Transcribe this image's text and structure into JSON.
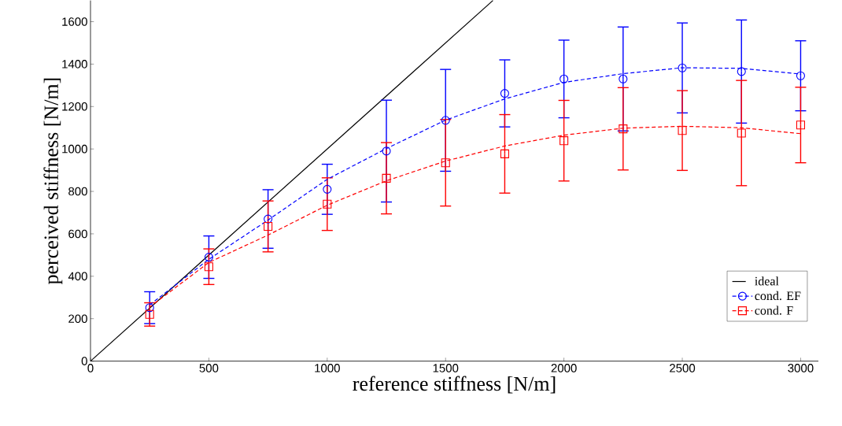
{
  "chart_data": {
    "type": "scatter",
    "xlabel": "reference stiffness [N/m]",
    "ylabel": "perceived stiffness [N/m]",
    "xlim": [
      0,
      3075
    ],
    "ylim": [
      0,
      1700
    ],
    "xticks": [
      0,
      500,
      1000,
      1500,
      2000,
      2500,
      3000
    ],
    "yticks": [
      0,
      200,
      400,
      600,
      800,
      1000,
      1200,
      1400,
      1600
    ],
    "legend": "bottom right",
    "series": [
      {
        "name": "ideal",
        "type": "line",
        "color": "#000000",
        "line_style": "solid",
        "marker": "none",
        "x": [
          0,
          1700
        ],
        "values": [
          0,
          1700
        ]
      },
      {
        "name": "cond. EF",
        "color": "#0000ff",
        "marker": "circle",
        "line_style": "dashed",
        "x": [
          250,
          500,
          750,
          1000,
          1250,
          1500,
          1750,
          2000,
          2250,
          2500,
          2750,
          3000
        ],
        "values": [
          252,
          490,
          670,
          810,
          990,
          1135,
          1262,
          1330,
          1330,
          1382,
          1365,
          1345
        ],
        "errors": [
          75,
          100,
          138,
          118,
          240,
          240,
          158,
          183,
          245,
          212,
          243,
          165
        ]
      },
      {
        "name": "cond. F",
        "color": "#ff0000",
        "marker": "square",
        "line_style": "dashed",
        "x": [
          250,
          500,
          750,
          1000,
          1250,
          1500,
          1750,
          2000,
          2250,
          2500,
          2750,
          3000
        ],
        "values": [
          220,
          445,
          635,
          740,
          862,
          935,
          977,
          1039,
          1095,
          1087,
          1075,
          1113
        ],
        "errors": [
          55,
          84,
          120,
          124,
          168,
          204,
          185,
          190,
          194,
          188,
          248,
          178
        ]
      },
      {
        "type": "line",
        "color": "#0000ff",
        "line_style": "dashed",
        "marker": "none",
        "x": [
          250,
          500,
          750,
          1000,
          1250,
          1500,
          1750,
          2000,
          2250,
          2500,
          2750,
          3000
        ],
        "values": [
          265,
          480,
          665,
          857,
          1002,
          1136,
          1236,
          1314,
          1355,
          1383,
          1380,
          1353
        ]
      },
      {
        "type": "line",
        "color": "#ff0000",
        "line_style": "dashed",
        "marker": "none",
        "x": [
          250,
          500,
          750,
          1000,
          1250,
          1500,
          1750,
          2000,
          2250,
          2500,
          2750,
          3000
        ],
        "values": [
          255,
          465,
          594,
          735,
          850,
          943,
          1014,
          1065,
          1098,
          1107,
          1100,
          1072
        ]
      }
    ]
  }
}
